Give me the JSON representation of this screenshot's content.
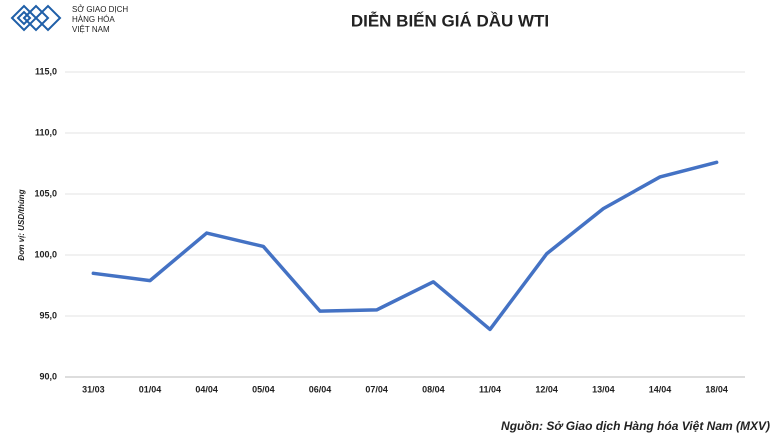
{
  "logo": {
    "lines": [
      "SỞ GIAO DỊCH",
      "HÀNG HÓA",
      "VIỆT NAM"
    ]
  },
  "chart_data": {
    "type": "line",
    "title": "DIỄN BIẾN GIÁ DẦU WTI",
    "y_label": "Đơn vị: USD/thùng",
    "source": "Nguồn: Sở Giao dịch Hàng hóa Việt Nam (MXV)",
    "categories": [
      "31/03",
      "01/04",
      "04/04",
      "05/04",
      "06/04",
      "07/04",
      "08/04",
      "11/04",
      "12/04",
      "13/04",
      "14/04",
      "18/04"
    ],
    "values": [
      98.5,
      97.9,
      101.8,
      100.7,
      95.4,
      95.5,
      97.8,
      93.9,
      100.1,
      103.8,
      106.4,
      107.6
    ],
    "color": "#4472c4",
    "ylim": [
      90,
      115
    ],
    "yticks": [
      {
        "value": 90,
        "label": "90,0"
      },
      {
        "value": 95,
        "label": "95,0"
      },
      {
        "value": 100,
        "label": "100,0"
      },
      {
        "value": 105,
        "label": "105,0"
      },
      {
        "value": 110,
        "label": "110,0"
      },
      {
        "value": 115,
        "label": "115,0"
      }
    ],
    "grid": true
  }
}
